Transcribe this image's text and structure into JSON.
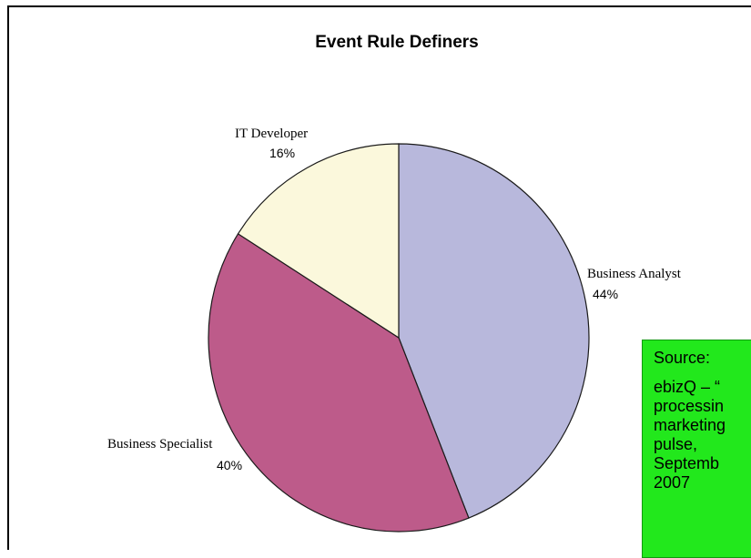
{
  "chart_data": {
    "type": "pie",
    "title": "Event Rule Definers",
    "slices": [
      {
        "label": "Business Analyst",
        "value": 44,
        "value_label": "44%",
        "color": "#b8b8dc"
      },
      {
        "label": "Business Specialist",
        "value": 40,
        "value_label": "40%",
        "color": "#bd5b8a"
      },
      {
        "label": "IT Developer",
        "value": 16,
        "value_label": "16%",
        "color": "#fbf8dc"
      }
    ],
    "legend": "none"
  },
  "source_note": {
    "heading": "Source:",
    "lines": [
      "ebizQ – “",
      "processin",
      "marketing",
      "pulse,",
      "Septemb",
      "2007"
    ]
  }
}
